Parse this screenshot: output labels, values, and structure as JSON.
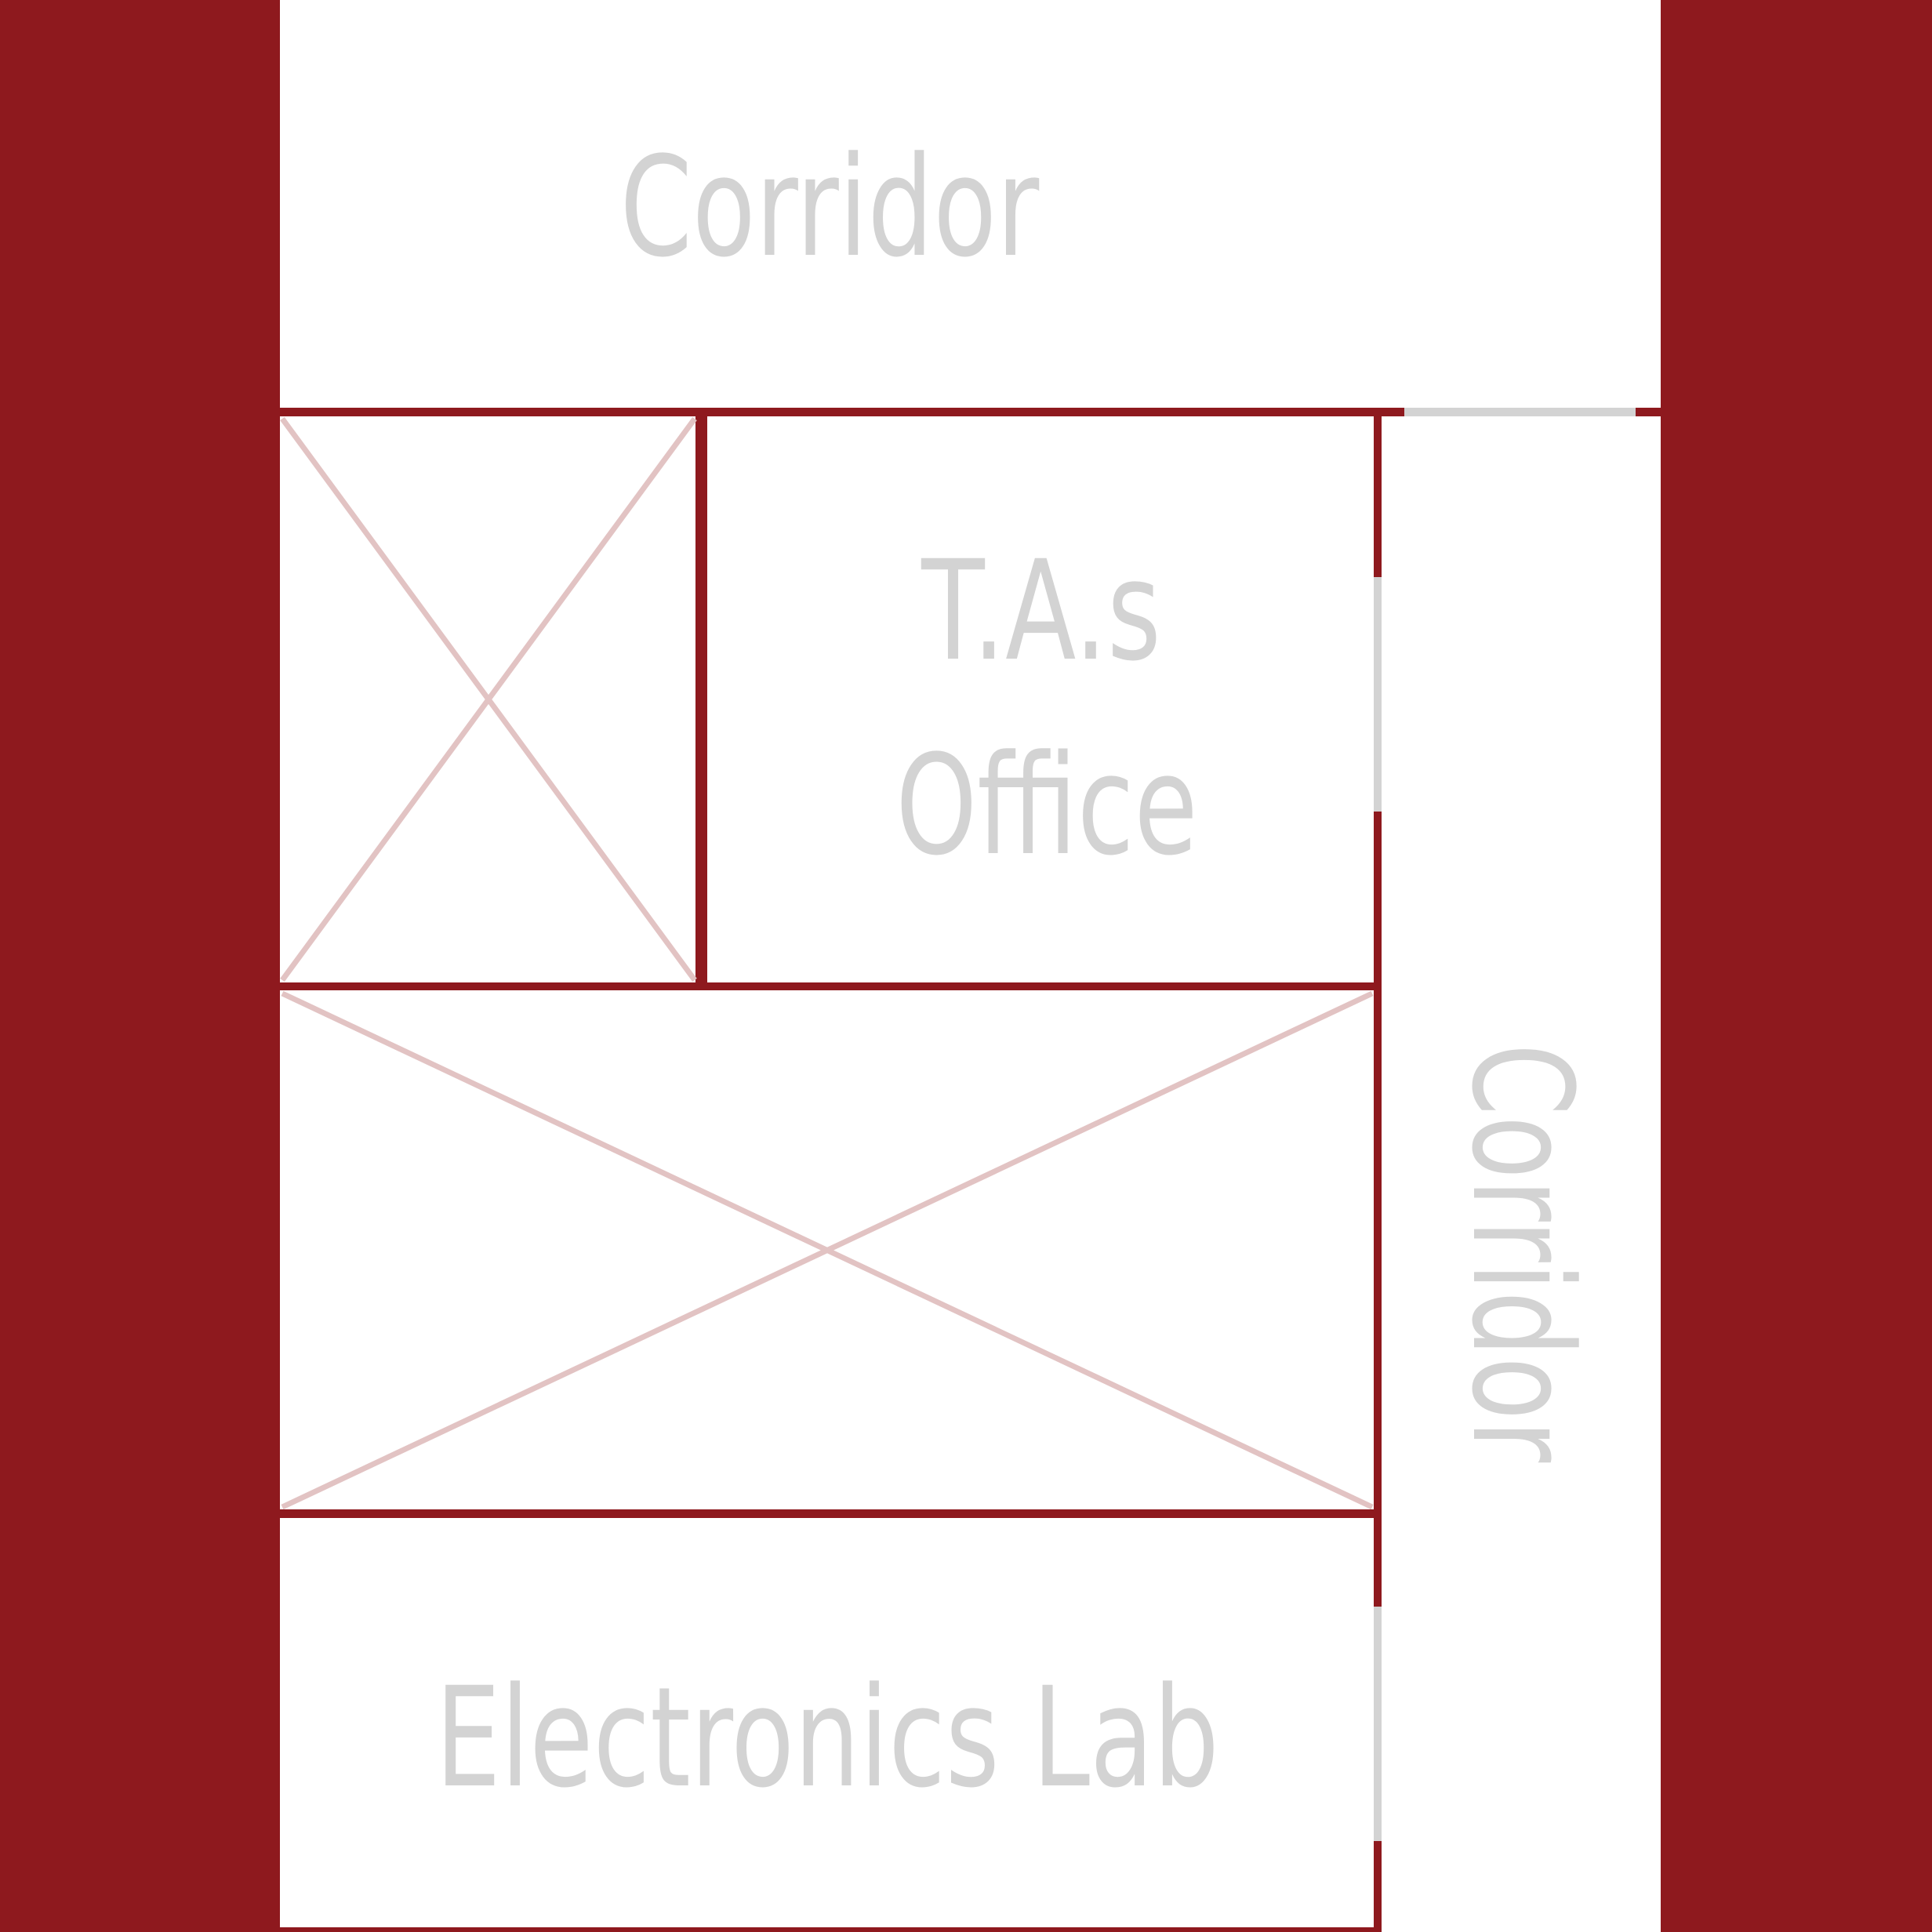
{
  "floor_plan": {
    "colors": {
      "wall": "#8e191e",
      "background": "#ffffff",
      "label": "#d3d3d3",
      "door_gap": "#d3d3d3",
      "blocked_cross": "#e2c3c3"
    },
    "labels": {
      "corridor_top": "Corridor",
      "tas_office_line1": "T.A.s",
      "tas_office_line2": "Office",
      "corridor_right": "Corridor",
      "electronics_lab": "Electronics Lab"
    },
    "blocked_areas": [
      "unlabeled room (crossed out)",
      "unlabeled room (crossed out)"
    ]
  }
}
